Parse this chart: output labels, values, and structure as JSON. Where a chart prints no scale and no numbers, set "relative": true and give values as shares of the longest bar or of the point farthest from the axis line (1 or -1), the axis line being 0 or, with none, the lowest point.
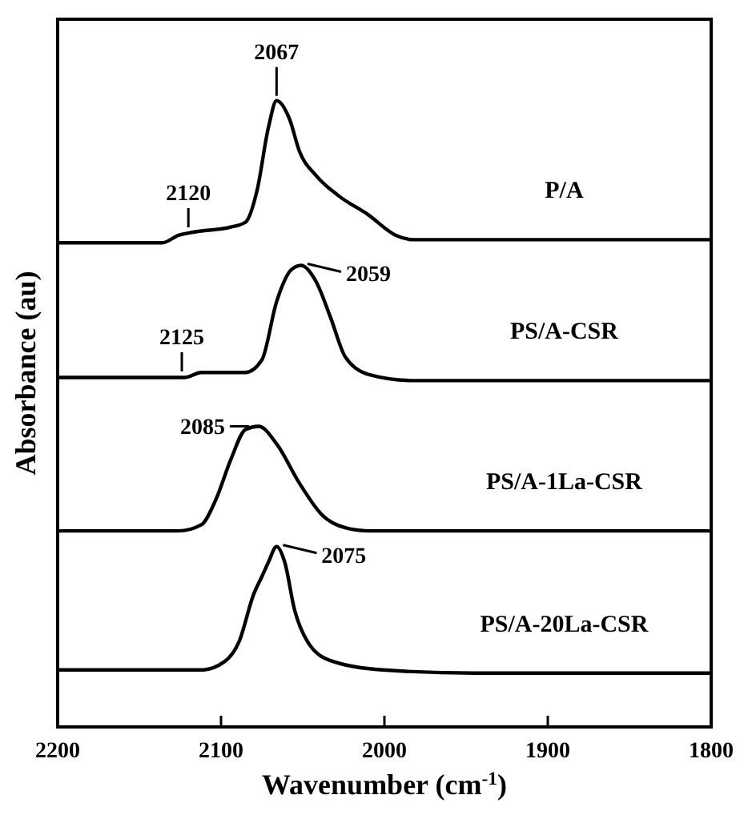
{
  "chart_data": {
    "type": "line",
    "relative": true,
    "xlabel": "Wavenumber (cm$^{-1}$)",
    "ylabel": "Absorbance (au)",
    "xlim": [
      2200,
      1800
    ],
    "xticks": [
      2200,
      2100,
      2000,
      1900,
      1800
    ],
    "legend": false,
    "grid": false,
    "marker": "none",
    "line_style": "solid",
    "tick_labels": "x",
    "series": [
      {
        "name": "P/A",
        "color": "#000000",
        "x": [
          2200,
          2136,
          2126,
          2117,
          2094,
          2085,
          2078,
          2071,
          2066,
          2058,
          2052,
          2042,
          2028,
          2010,
          1993,
          1982,
          1800
        ],
        "values": [
          0.773,
          0.773,
          0.785,
          0.79,
          0.798,
          0.806,
          0.856,
          0.957,
          1.0,
          0.97,
          0.919,
          0.881,
          0.848,
          0.818,
          0.785,
          0.778,
          0.778
        ]
      },
      {
        "name": "PS/A-CSR",
        "color": "#000000",
        "x": [
          2200,
          2122,
          2112,
          2085,
          2075,
          2066,
          2057,
          2051,
          2042,
          2033,
          2024,
          2010,
          1982,
          1800
        ],
        "values": [
          0.558,
          0.558,
          0.566,
          0.566,
          0.586,
          0.679,
          0.73,
          0.737,
          0.712,
          0.654,
          0.591,
          0.563,
          0.553,
          0.553
        ]
      },
      {
        "name": "PS/A-1La-CSR",
        "color": "#000000",
        "x": [
          2200,
          2126,
          2112,
          2103,
          2094,
          2085,
          2077,
          2066,
          2052,
          2038,
          2024,
          2010,
          1800
        ],
        "values": [
          0.313,
          0.313,
          0.323,
          0.364,
          0.427,
          0.475,
          0.48,
          0.452,
          0.389,
          0.338,
          0.318,
          0.313,
          0.313
        ]
      },
      {
        "name": "PS/A-20La-CSR",
        "color": "#000000",
        "x": [
          2200,
          2112,
          2098,
          2089,
          2080,
          2075,
          2071,
          2066,
          2061,
          2055,
          2047,
          2033,
          2001,
          1945,
          1800
        ],
        "values": [
          0.091,
          0.091,
          0.104,
          0.136,
          0.212,
          0.24,
          0.263,
          0.288,
          0.263,
          0.187,
          0.136,
          0.106,
          0.091,
          0.086,
          0.086
        ]
      }
    ],
    "annotations": [
      {
        "text": "2067",
        "x": 2066,
        "y": 1.0
      },
      {
        "text": "2120",
        "x": 2120,
        "y": 0.79
      },
      {
        "text": "2059",
        "x": 2051,
        "y": 0.737
      },
      {
        "text": "2125",
        "x": 2124,
        "y": 0.56
      },
      {
        "text": "2085",
        "x": 2077,
        "y": 0.48
      },
      {
        "text": "2075",
        "x": 2066,
        "y": 0.288
      }
    ]
  }
}
